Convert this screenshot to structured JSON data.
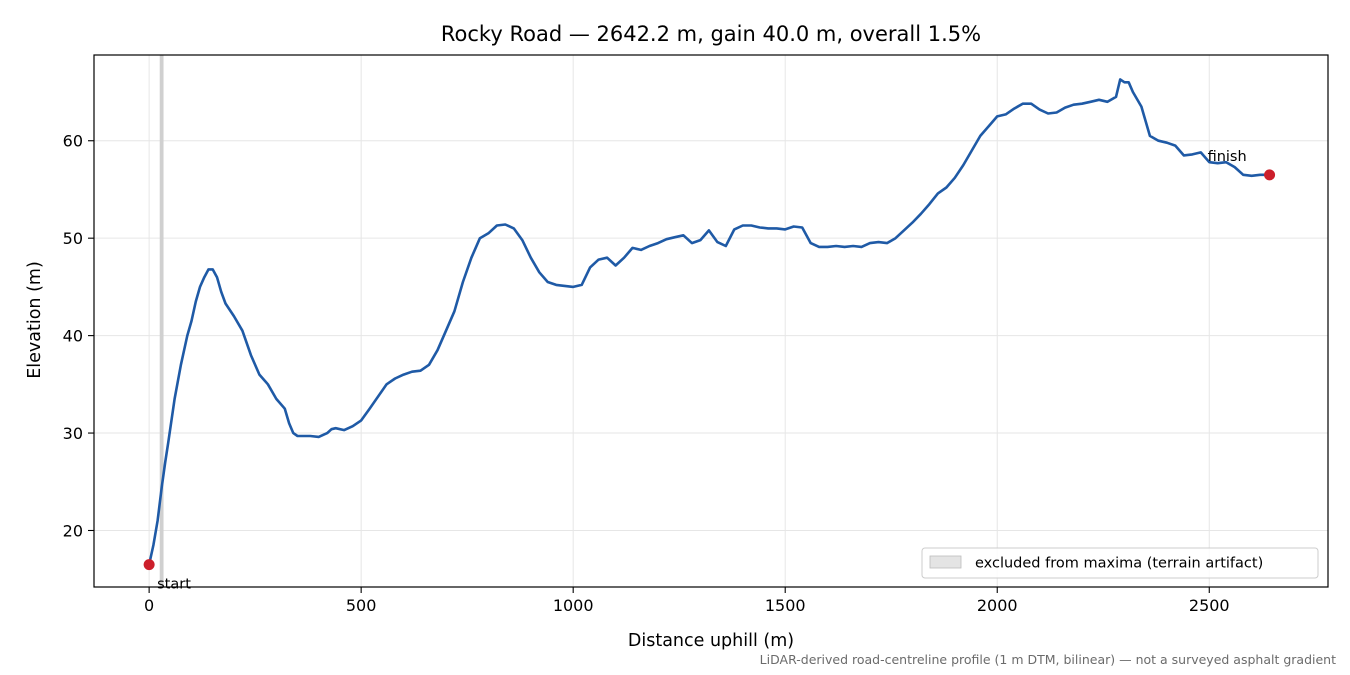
{
  "chart_data": {
    "type": "line",
    "title": "Rocky Road — 2642.2 m, gain 40.0 m, overall 1.5%",
    "xlabel": "Distance uphill (m)",
    "ylabel": "Elevation (m)",
    "xlim": [
      -130,
      2780
    ],
    "ylim": [
      14.2,
      68.8
    ],
    "xticks": [
      0,
      500,
      1000,
      1500,
      2000,
      2500
    ],
    "yticks": [
      20,
      30,
      40,
      50,
      60
    ],
    "grid": true,
    "series": [
      {
        "name": "",
        "color": "#1f5aa6",
        "x": [
          0,
          10,
          20,
          30,
          38,
          45,
          60,
          75,
          90,
          100,
          110,
          120,
          130,
          140,
          150,
          160,
          170,
          180,
          200,
          220,
          240,
          260,
          280,
          300,
          320,
          330,
          340,
          350,
          360,
          380,
          400,
          420,
          430,
          440,
          460,
          480,
          500,
          520,
          560,
          580,
          600,
          620,
          640,
          660,
          680,
          700,
          720,
          740,
          760,
          780,
          800,
          820,
          840,
          860,
          880,
          900,
          920,
          940,
          960,
          980,
          1000,
          1020,
          1040,
          1060,
          1080,
          1100,
          1120,
          1140,
          1160,
          1180,
          1200,
          1220,
          1240,
          1260,
          1280,
          1300,
          1320,
          1340,
          1360,
          1380,
          1400,
          1420,
          1440,
          1460,
          1480,
          1500,
          1520,
          1540,
          1560,
          1580,
          1600,
          1620,
          1640,
          1660,
          1680,
          1700,
          1720,
          1740,
          1760,
          1780,
          1800,
          1820,
          1840,
          1860,
          1880,
          1900,
          1920,
          1940,
          1960,
          1980,
          2000,
          2020,
          2040,
          2060,
          2080,
          2100,
          2120,
          2140,
          2160,
          2180,
          2200,
          2220,
          2240,
          2260,
          2280,
          2290,
          2300,
          2310,
          2320,
          2340,
          2360,
          2380,
          2400,
          2420,
          2440,
          2460,
          2480,
          2500,
          2520,
          2540,
          2560,
          2580,
          2600,
          2620,
          2642.2
        ],
        "y": [
          16.5,
          18.5,
          21.0,
          24.5,
          27.0,
          29.0,
          33.5,
          37.0,
          40.0,
          41.5,
          43.5,
          45.0,
          46.0,
          46.8,
          46.8,
          46.0,
          44.5,
          43.3,
          42.0,
          40.5,
          38.0,
          36.0,
          35.0,
          33.5,
          32.5,
          31.0,
          30.0,
          29.7,
          29.7,
          29.7,
          29.6,
          30.0,
          30.4,
          30.5,
          30.3,
          30.7,
          31.3,
          32.5,
          35.0,
          35.6,
          36.0,
          36.3,
          36.4,
          37.0,
          38.5,
          40.5,
          42.5,
          45.5,
          48.0,
          50.0,
          50.5,
          51.3,
          51.4,
          51.0,
          49.8,
          48.0,
          46.5,
          45.5,
          45.2,
          45.1,
          45.0,
          45.2,
          47.0,
          47.8,
          48.0,
          47.2,
          48.0,
          49.0,
          48.8,
          49.2,
          49.5,
          49.9,
          50.1,
          50.3,
          49.5,
          49.8,
          50.8,
          49.6,
          49.2,
          50.9,
          51.3,
          51.3,
          51.1,
          51.0,
          51.0,
          50.9,
          51.2,
          51.1,
          49.5,
          49.1,
          49.1,
          49.2,
          49.1,
          49.2,
          49.1,
          49.5,
          49.6,
          49.5,
          50.0,
          50.8,
          51.6,
          52.5,
          53.5,
          54.6,
          55.2,
          56.2,
          57.5,
          59.0,
          60.5,
          61.5,
          62.5,
          62.7,
          63.3,
          63.8,
          63.8,
          63.2,
          62.8,
          62.9,
          63.4,
          63.7,
          63.8,
          64.0,
          64.2,
          64.0,
          64.5,
          66.3,
          66.0,
          66.0,
          65.0,
          63.5,
          60.5,
          60.0,
          59.8,
          59.5,
          58.5,
          58.6,
          58.8,
          57.8,
          57.7,
          57.8,
          57.3,
          56.5,
          56.4,
          56.5,
          56.5
        ]
      }
    ],
    "points": [
      {
        "x": 0,
        "y": 16.5,
        "label": "start",
        "color": "#cc1f2b"
      },
      {
        "x": 2642.2,
        "y": 56.5,
        "label": "finish",
        "color": "#cc1f2b"
      }
    ],
    "excluded_band": {
      "x0": 25,
      "x1": 34,
      "color": "#d0d0d0"
    },
    "legend": {
      "placement": "lower-right",
      "entries": [
        {
          "label": "excluded from maxima (terrain artifact)"
        }
      ]
    },
    "footnote": "LiDAR-derived road-centreline profile (1 m DTM, bilinear) — not a surveyed asphalt gradient"
  }
}
